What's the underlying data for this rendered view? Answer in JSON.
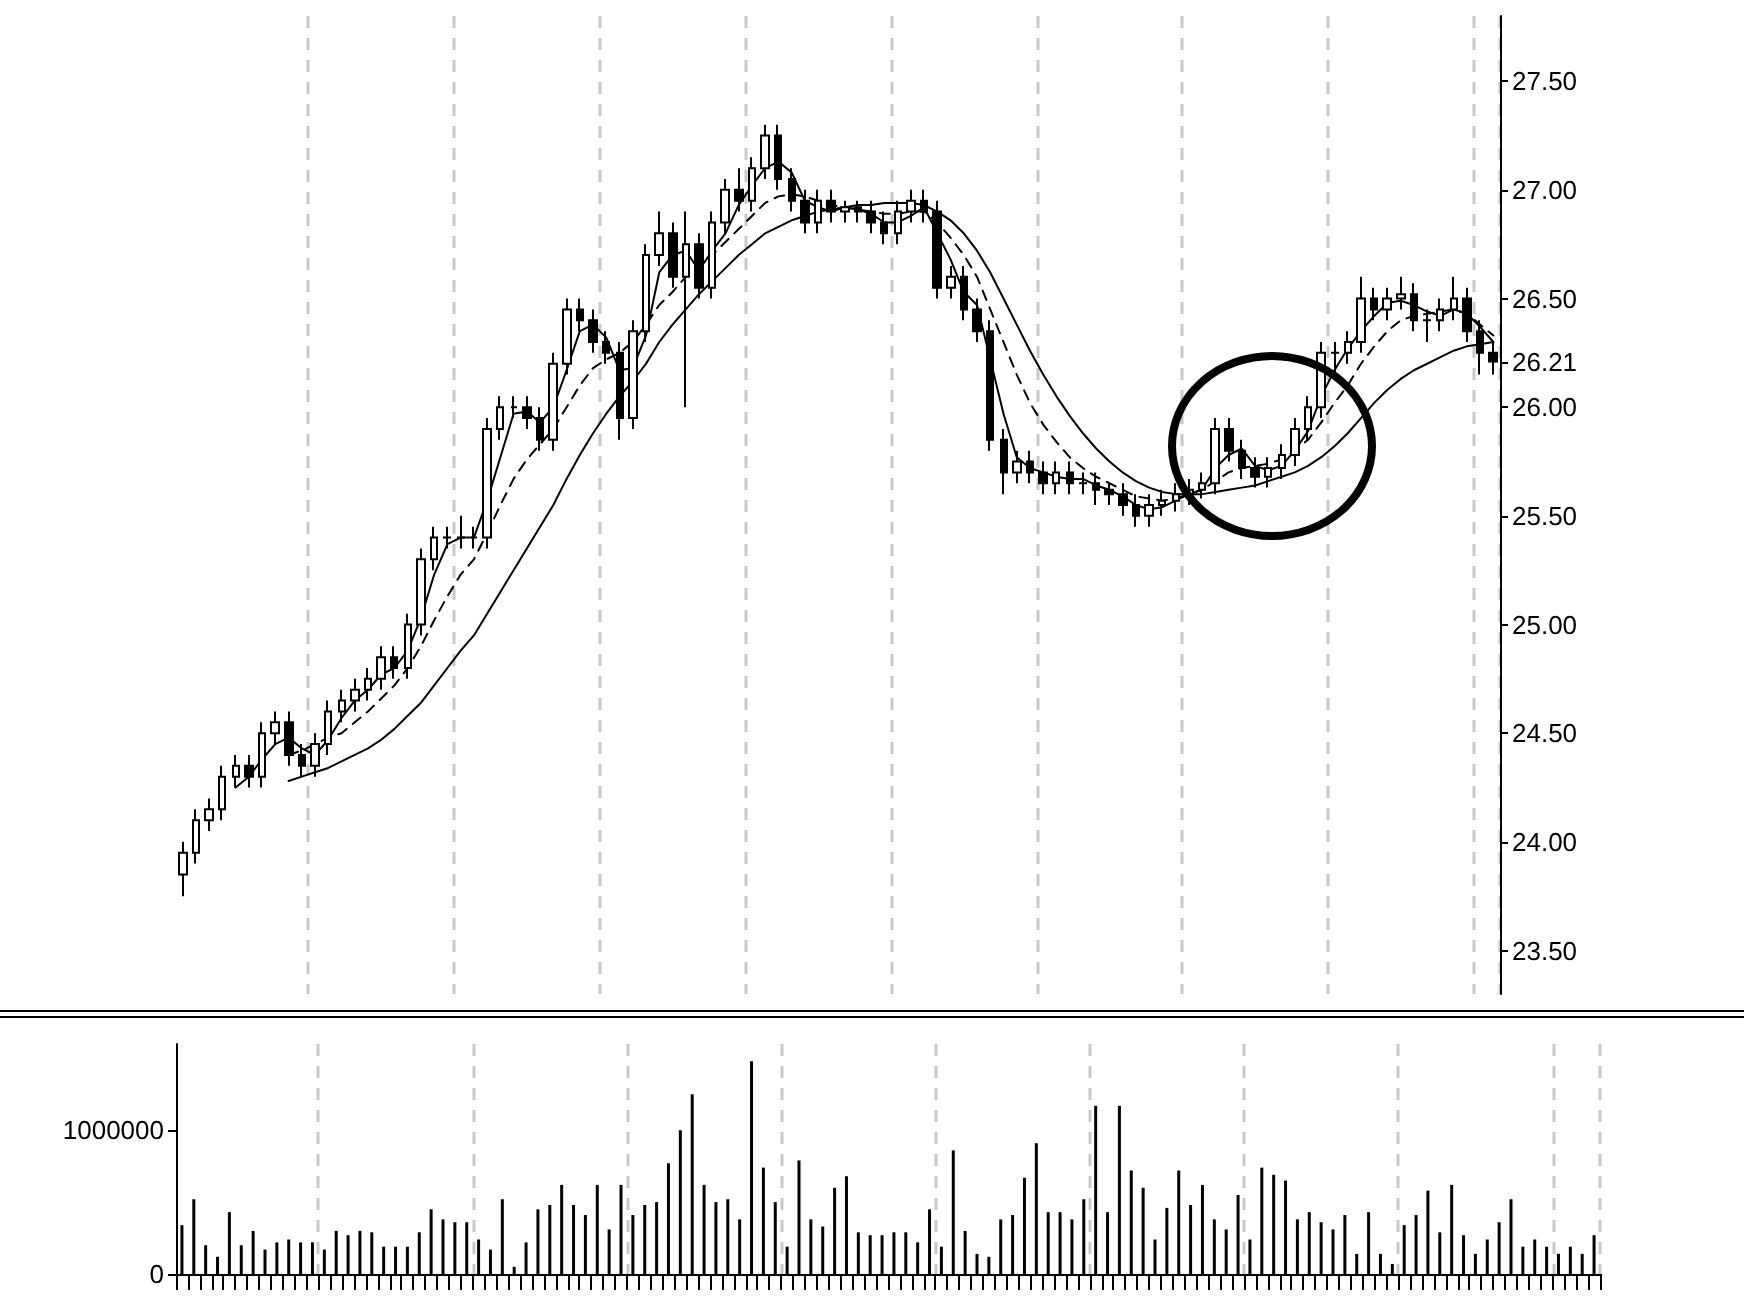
{
  "chart_data": [
    {
      "type": "candlestick",
      "categories": [
        null,
        null,
        null,
        null,
        null,
        null,
        null,
        null,
        null,
        null,
        null,
        null,
        null,
        null,
        null,
        null,
        null,
        null,
        null,
        null,
        null,
        null,
        null,
        null,
        null,
        null,
        null,
        null,
        null,
        null,
        null,
        null,
        null,
        null,
        null,
        null,
        null,
        null,
        null,
        null,
        null,
        null,
        null,
        null,
        null,
        null,
        null,
        null,
        null,
        null,
        null,
        null,
        null,
        null,
        null,
        null,
        null,
        null,
        null,
        null,
        null,
        null,
        null,
        null,
        null,
        null,
        null,
        null,
        null,
        null,
        null,
        null,
        null,
        null,
        null,
        null,
        null,
        null,
        null,
        null,
        null,
        null,
        null,
        null,
        null,
        null,
        null,
        null,
        null,
        null,
        null,
        null,
        null,
        null,
        null,
        null,
        null,
        null,
        null,
        null
      ],
      "ohlc": [
        [
          23.85,
          24.0,
          23.75,
          23.95
        ],
        [
          23.95,
          24.15,
          23.9,
          24.1
        ],
        [
          24.1,
          24.2,
          24.05,
          24.15
        ],
        [
          24.15,
          24.35,
          24.1,
          24.3
        ],
        [
          24.3,
          24.4,
          24.25,
          24.35
        ],
        [
          24.35,
          24.4,
          24.25,
          24.3
        ],
        [
          24.3,
          24.55,
          24.25,
          24.5
        ],
        [
          24.5,
          24.6,
          24.45,
          24.55
        ],
        [
          24.55,
          24.6,
          24.35,
          24.4
        ],
        [
          24.4,
          24.45,
          24.3,
          24.35
        ],
        [
          24.35,
          24.5,
          24.3,
          24.45
        ],
        [
          24.45,
          24.65,
          24.4,
          24.6
        ],
        [
          24.6,
          24.7,
          24.55,
          24.65
        ],
        [
          24.65,
          24.75,
          24.6,
          24.7
        ],
        [
          24.7,
          24.8,
          24.65,
          24.75
        ],
        [
          24.75,
          24.9,
          24.7,
          24.85
        ],
        [
          24.85,
          24.9,
          24.75,
          24.8
        ],
        [
          24.8,
          25.05,
          24.75,
          25.0
        ],
        [
          25.0,
          25.35,
          24.95,
          25.3
        ],
        [
          25.3,
          25.45,
          25.25,
          25.4
        ],
        [
          25.4,
          25.45,
          25.35,
          25.4
        ],
        [
          25.4,
          25.5,
          25.35,
          25.4
        ],
        [
          25.4,
          25.45,
          25.35,
          25.4
        ],
        [
          25.4,
          25.95,
          25.35,
          25.9
        ],
        [
          25.9,
          26.05,
          25.85,
          26.0
        ],
        [
          26.0,
          26.05,
          25.95,
          26.0
        ],
        [
          26.0,
          26.05,
          25.9,
          25.95
        ],
        [
          25.95,
          26.0,
          25.8,
          25.85
        ],
        [
          25.85,
          26.25,
          25.8,
          26.2
        ],
        [
          26.2,
          26.5,
          26.15,
          26.45
        ],
        [
          26.45,
          26.5,
          26.35,
          26.4
        ],
        [
          26.4,
          26.45,
          26.25,
          26.3
        ],
        [
          26.3,
          26.35,
          26.2,
          26.25
        ],
        [
          26.25,
          26.3,
          25.85,
          25.95
        ],
        [
          25.95,
          26.4,
          25.9,
          26.35
        ],
        [
          26.35,
          26.75,
          26.3,
          26.7
        ],
        [
          26.7,
          26.9,
          26.65,
          26.8
        ],
        [
          26.8,
          26.85,
          26.55,
          26.6
        ],
        [
          26.6,
          26.9,
          26.0,
          26.75
        ],
        [
          26.75,
          26.8,
          26.5,
          26.55
        ],
        [
          26.55,
          26.9,
          26.5,
          26.85
        ],
        [
          26.85,
          27.05,
          26.8,
          27.0
        ],
        [
          27.0,
          27.1,
          26.9,
          26.95
        ],
        [
          26.95,
          27.15,
          26.9,
          27.1
        ],
        [
          27.1,
          27.3,
          27.05,
          27.25
        ],
        [
          27.25,
          27.3,
          27.0,
          27.05
        ],
        [
          27.05,
          27.1,
          26.9,
          26.95
        ],
        [
          26.95,
          27.0,
          26.8,
          26.85
        ],
        [
          26.85,
          27.0,
          26.8,
          26.95
        ],
        [
          26.95,
          27.0,
          26.85,
          26.9
        ],
        [
          26.9,
          26.95,
          26.85,
          26.92
        ],
        [
          26.92,
          26.95,
          26.85,
          26.9
        ],
        [
          26.9,
          26.95,
          26.8,
          26.85
        ],
        [
          26.85,
          26.9,
          26.75,
          26.8
        ],
        [
          26.8,
          26.95,
          26.75,
          26.9
        ],
        [
          26.9,
          27.0,
          26.85,
          26.95
        ],
        [
          26.95,
          27.0,
          26.85,
          26.9
        ],
        [
          26.9,
          26.95,
          26.5,
          26.55
        ],
        [
          26.55,
          26.65,
          26.5,
          26.6
        ],
        [
          26.6,
          26.65,
          26.4,
          26.45
        ],
        [
          26.45,
          26.5,
          26.3,
          26.35
        ],
        [
          26.35,
          26.4,
          25.8,
          25.85
        ],
        [
          25.85,
          25.9,
          25.6,
          25.7
        ],
        [
          25.7,
          25.8,
          25.65,
          25.75
        ],
        [
          25.75,
          25.8,
          25.65,
          25.7
        ],
        [
          25.7,
          25.75,
          25.6,
          25.65
        ],
        [
          25.65,
          25.75,
          25.6,
          25.7
        ],
        [
          25.7,
          25.75,
          25.6,
          25.65
        ],
        [
          25.65,
          25.7,
          25.6,
          25.65
        ],
        [
          25.65,
          25.7,
          25.55,
          25.62
        ],
        [
          25.62,
          25.65,
          25.55,
          25.6
        ],
        [
          25.6,
          25.65,
          25.5,
          25.55
        ],
        [
          25.55,
          25.6,
          25.45,
          25.5
        ],
        [
          25.5,
          25.6,
          25.45,
          25.55
        ],
        [
          25.55,
          25.62,
          25.5,
          25.57
        ],
        [
          25.57,
          25.65,
          25.52,
          25.6
        ],
        [
          25.6,
          25.67,
          25.55,
          25.62
        ],
        [
          25.62,
          25.7,
          25.58,
          25.65
        ],
        [
          25.65,
          25.95,
          25.6,
          25.9
        ],
        [
          25.9,
          25.95,
          25.75,
          25.8
        ],
        [
          25.8,
          25.85,
          25.67,
          25.72
        ],
        [
          25.72,
          25.77,
          25.63,
          25.68
        ],
        [
          25.68,
          25.77,
          25.63,
          25.72
        ],
        [
          25.72,
          25.83,
          25.67,
          25.78
        ],
        [
          25.78,
          25.95,
          25.73,
          25.9
        ],
        [
          25.9,
          26.05,
          25.85,
          26.0
        ],
        [
          26.0,
          26.3,
          25.95,
          26.25
        ],
        [
          26.25,
          26.3,
          26.15,
          26.25
        ],
        [
          26.25,
          26.35,
          26.2,
          26.3
        ],
        [
          26.3,
          26.6,
          26.25,
          26.5
        ],
        [
          26.5,
          26.55,
          26.4,
          26.45
        ],
        [
          26.45,
          26.55,
          26.4,
          26.5
        ],
        [
          26.5,
          26.6,
          26.45,
          26.52
        ],
        [
          26.52,
          26.57,
          26.35,
          26.4
        ],
        [
          26.4,
          26.45,
          26.3,
          26.4
        ],
        [
          26.4,
          26.5,
          26.35,
          26.45
        ],
        [
          26.45,
          26.6,
          26.4,
          26.5
        ],
        [
          26.5,
          26.55,
          26.3,
          26.35
        ],
        [
          26.35,
          26.4,
          26.15,
          26.25
        ],
        [
          26.25,
          26.3,
          26.15,
          26.21
        ]
      ],
      "series": [
        {
          "type": "line",
          "color": "#000000",
          "line_style": "solid",
          "values": [
            null,
            null,
            null,
            null,
            null,
            null,
            null,
            null,
            24.28,
            24.3,
            24.32,
            24.34,
            24.37,
            24.4,
            24.43,
            24.47,
            24.52,
            24.58,
            24.64,
            24.72,
            24.8,
            24.88,
            24.95,
            25.05,
            25.15,
            25.25,
            25.35,
            25.45,
            25.55,
            25.67,
            25.78,
            25.88,
            25.97,
            26.05,
            26.12,
            26.2,
            26.3,
            26.38,
            26.45,
            26.52,
            26.58,
            26.64,
            26.7,
            26.75,
            26.8,
            26.83,
            26.86,
            26.88,
            26.9,
            26.91,
            26.92,
            26.93,
            26.93,
            26.94,
            26.94,
            26.94,
            26.93,
            26.9,
            26.86,
            26.8,
            26.72,
            26.62,
            26.5,
            26.38,
            26.26,
            26.15,
            26.05,
            25.96,
            25.88,
            25.81,
            25.75,
            25.7,
            25.66,
            25.63,
            25.61,
            25.6,
            25.6,
            25.6,
            25.61,
            25.62,
            25.63,
            25.64,
            25.66,
            25.68,
            25.7,
            25.73,
            25.77,
            25.82,
            25.88,
            25.95,
            26.02,
            26.08,
            26.13,
            26.17,
            26.2,
            26.23,
            26.26,
            26.28,
            26.29,
            26.3
          ]
        },
        {
          "type": "line",
          "color": "#000000",
          "line_style": "dashed",
          "values": [
            null,
            null,
            null,
            null,
            null,
            null,
            null,
            null,
            24.4,
            24.42,
            24.45,
            24.48,
            24.5,
            24.55,
            24.6,
            24.66,
            24.72,
            24.8,
            24.9,
            25.02,
            25.13,
            25.23,
            25.3,
            25.42,
            25.55,
            25.67,
            25.76,
            25.83,
            25.9,
            26.0,
            26.1,
            26.18,
            26.22,
            26.25,
            26.3,
            26.38,
            26.47,
            26.53,
            26.6,
            26.64,
            26.7,
            26.76,
            26.82,
            26.88,
            26.94,
            26.97,
            26.98,
            26.97,
            26.95,
            26.93,
            26.92,
            26.91,
            26.9,
            26.89,
            26.89,
            26.9,
            26.9,
            26.85,
            26.78,
            26.7,
            26.6,
            26.45,
            26.3,
            26.15,
            26.02,
            25.92,
            25.84,
            25.77,
            25.72,
            25.68,
            25.65,
            25.62,
            25.59,
            25.58,
            25.57,
            25.58,
            25.6,
            25.62,
            25.66,
            25.7,
            25.72,
            25.73,
            25.74,
            25.76,
            25.8,
            25.85,
            25.93,
            26.02,
            26.1,
            26.2,
            26.28,
            26.35,
            26.4,
            26.42,
            26.43,
            26.44,
            26.45,
            26.43,
            26.38,
            26.33
          ]
        },
        {
          "type": "line",
          "color": "#000000",
          "line_style": "solid",
          "values": [
            null,
            null,
            null,
            null,
            24.25,
            24.3,
            24.38,
            24.45,
            24.48,
            24.43,
            24.4,
            24.47,
            24.57,
            24.65,
            24.7,
            24.77,
            24.8,
            24.88,
            25.03,
            25.23,
            25.37,
            25.4,
            25.4,
            25.57,
            25.77,
            25.97,
            25.98,
            25.93,
            26.0,
            26.17,
            26.35,
            26.38,
            26.32,
            26.17,
            26.18,
            26.33,
            26.62,
            26.7,
            26.72,
            26.63,
            26.72,
            26.8,
            26.93,
            27.02,
            27.1,
            27.13,
            27.08,
            26.95,
            26.92,
            26.9,
            26.92,
            26.91,
            26.89,
            26.85,
            26.85,
            26.88,
            26.92,
            26.8,
            26.68,
            26.53,
            26.47,
            26.22,
            25.97,
            25.77,
            25.72,
            25.7,
            25.68,
            25.67,
            25.67,
            25.64,
            25.62,
            25.59,
            25.55,
            25.53,
            25.54,
            25.57,
            25.6,
            25.62,
            25.72,
            25.78,
            25.81,
            25.73,
            25.71,
            25.73,
            25.8,
            25.89,
            26.05,
            26.17,
            26.27,
            26.35,
            26.42,
            26.48,
            26.49,
            26.47,
            26.44,
            26.42,
            26.45,
            26.43,
            26.37,
            26.3
          ]
        }
      ],
      "color": "#000000",
      "ylim": [
        23.3,
        27.8
      ],
      "yticks": [
        {
          "value": 23.5,
          "label": "23.50"
        },
        {
          "value": 24,
          "label": "24.00"
        },
        {
          "value": 24.5,
          "label": "24.50"
        },
        {
          "value": 25,
          "label": "25.00"
        },
        {
          "value": 25.5,
          "label": "25.50"
        },
        {
          "value": 26,
          "label": "26.00"
        },
        {
          "value": 26.21,
          "label": "26.21"
        },
        {
          "value": 26.5,
          "label": "26.50"
        },
        {
          "value": 27,
          "label": "27.00"
        },
        {
          "value": 27.5,
          "label": "27.50"
        }
      ],
      "grid": "x"
    },
    {
      "type": "bar",
      "categories": [
        null,
        null,
        null,
        null,
        null,
        null,
        null,
        null,
        null,
        null,
        null,
        null,
        null,
        null,
        null,
        null,
        null,
        null,
        null,
        null,
        null,
        null,
        null,
        null,
        null,
        null,
        null,
        null,
        null,
        null,
        null,
        null,
        null,
        null,
        null,
        null,
        null,
        null,
        null,
        null,
        null,
        null,
        null,
        null,
        null,
        null,
        null,
        null,
        null,
        null,
        null,
        null,
        null,
        null,
        null,
        null,
        null,
        null,
        null,
        null,
        null,
        null,
        null,
        null,
        null,
        null,
        null,
        null,
        null,
        null,
        null,
        null,
        null,
        null,
        null,
        null,
        null,
        null,
        null,
        null,
        null,
        null,
        null,
        null,
        null,
        null,
        null,
        null,
        null,
        null,
        null,
        null,
        null,
        null,
        null,
        null,
        null,
        null,
        null,
        null,
        null,
        null,
        null,
        null,
        null,
        null,
        null,
        null,
        null,
        null,
        null,
        null,
        null,
        null,
        null,
        null,
        null,
        null,
        null,
        null
      ],
      "values": [
        340000,
        520000,
        200000,
        120000,
        430000,
        200000,
        300000,
        170000,
        220000,
        240000,
        220000,
        220000,
        170000,
        300000,
        270000,
        300000,
        290000,
        190000,
        190000,
        190000,
        290000,
        450000,
        380000,
        360000,
        360000,
        240000,
        170000,
        520000,
        50000,
        220000,
        450000,
        480000,
        620000,
        480000,
        410000,
        620000,
        310000,
        620000,
        410000,
        480000,
        500000,
        770000,
        1000000,
        1250000,
        620000,
        500000,
        520000,
        380000,
        1480000,
        740000,
        500000,
        190000,
        790000,
        380000,
        330000,
        600000,
        680000,
        290000,
        270000,
        270000,
        290000,
        290000,
        220000,
        450000,
        190000,
        860000,
        300000,
        140000,
        120000,
        380000,
        410000,
        670000,
        910000,
        430000,
        430000,
        380000,
        520000,
        1170000,
        430000,
        1170000,
        720000,
        600000,
        240000,
        460000,
        720000,
        480000,
        620000,
        380000,
        310000,
        550000,
        240000,
        740000,
        690000,
        650000,
        380000,
        430000,
        360000,
        310000,
        410000,
        140000,
        430000,
        140000,
        70000,
        340000,
        410000,
        580000,
        290000,
        620000,
        270000,
        140000,
        240000,
        360000,
        520000,
        190000,
        240000,
        190000,
        140000,
        190000,
        140000,
        270000
      ],
      "color": "#000000",
      "ylim": [
        0,
        1600000
      ],
      "yticks": [
        0,
        1000000
      ],
      "grid": "x"
    }
  ]
}
